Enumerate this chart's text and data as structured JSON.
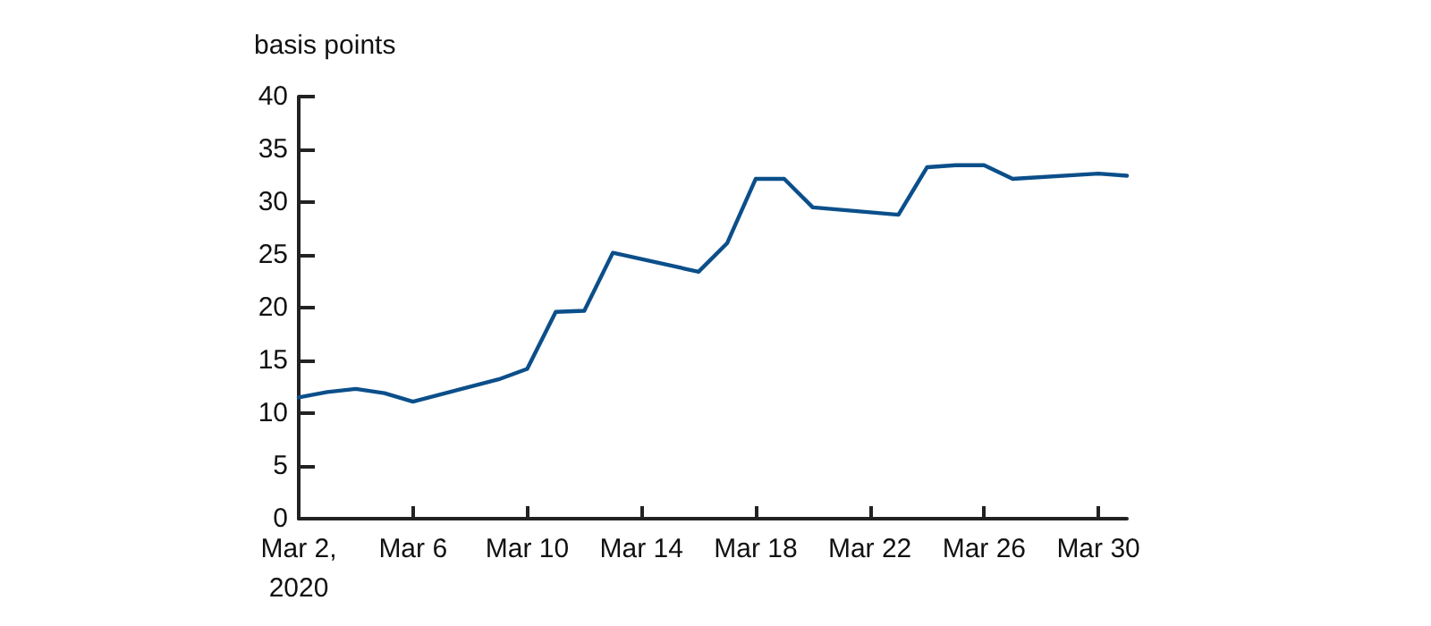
{
  "chart_data": {
    "type": "line",
    "ylabel": "basis points",
    "x": [
      "2020-03-02",
      "2020-03-03",
      "2020-03-04",
      "2020-03-05",
      "2020-03-06",
      "2020-03-09",
      "2020-03-10",
      "2020-03-11",
      "2020-03-12",
      "2020-03-13",
      "2020-03-16",
      "2020-03-17",
      "2020-03-18",
      "2020-03-19",
      "2020-03-20",
      "2020-03-23",
      "2020-03-24",
      "2020-03-25",
      "2020-03-26",
      "2020-03-27",
      "2020-03-30",
      "2020-03-31"
    ],
    "series": [
      {
        "color": "#0b4f8a",
        "values": [
          11.5,
          12.0,
          12.3,
          11.9,
          11.1,
          13.2,
          14.2,
          19.6,
          19.7,
          25.2,
          23.4,
          26.1,
          32.2,
          32.2,
          29.5,
          28.8,
          33.3,
          33.5,
          33.5,
          32.2,
          32.7,
          32.5
        ]
      }
    ],
    "xlim": [
      "2020-03-02",
      "2020-03-31"
    ],
    "xticks": [
      {
        "value": "2020-03-02",
        "label": "Mar 2,\n2020"
      },
      {
        "value": "2020-03-06",
        "label": "Mar 6"
      },
      {
        "value": "2020-03-10",
        "label": "Mar 10"
      },
      {
        "value": "2020-03-14",
        "label": "Mar 14"
      },
      {
        "value": "2020-03-18",
        "label": "Mar 18"
      },
      {
        "value": "2020-03-22",
        "label": "Mar 22"
      },
      {
        "value": "2020-03-26",
        "label": "Mar 26"
      },
      {
        "value": "2020-03-30",
        "label": "Mar 30"
      }
    ],
    "ylim": [
      0,
      40
    ],
    "yticks": [
      0,
      5,
      10,
      15,
      20,
      25,
      30,
      35,
      40
    ],
    "grid": false,
    "marker": "none",
    "line_style": "solid"
  }
}
